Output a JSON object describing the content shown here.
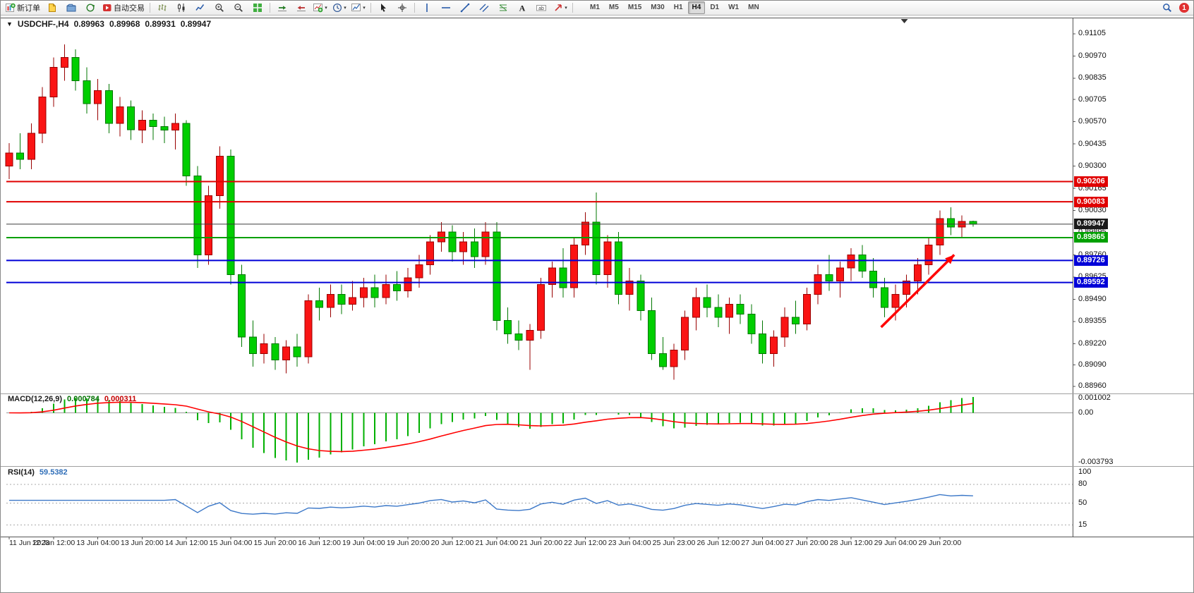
{
  "main_title": {
    "symbol_period": "USDCHF-,H4",
    "open": "0.89963",
    "high": "0.89968",
    "low": "0.89931",
    "close": "0.89947"
  },
  "toolbar": {
    "left_items": [
      {
        "type": "button",
        "name": "new-order-button",
        "icon": "new-order-icon",
        "label": "新订单"
      },
      {
        "type": "button",
        "name": "new-chart-button",
        "icon": "new-chart-icon"
      },
      {
        "type": "button",
        "name": "profiles-button",
        "icon": "profiles-icon"
      },
      {
        "type": "button",
        "name": "refresh-button",
        "icon": "refresh-icon"
      },
      {
        "type": "button",
        "name": "autotrading-button",
        "icon": "autotrade-icon",
        "label": "自动交易"
      },
      {
        "type": "sep"
      },
      {
        "type": "button",
        "name": "bar-chart-button",
        "icon": "bar-chart-icon"
      },
      {
        "type": "button",
        "name": "candle-chart-button",
        "icon": "candlestick-chart-icon"
      },
      {
        "type": "button",
        "name": "line-chart-button",
        "icon": "line-chart-icon"
      },
      {
        "type": "button",
        "name": "zoom-in-button",
        "icon": "zoom-in-icon"
      },
      {
        "type": "button",
        "name": "zoom-out-button",
        "icon": "zoom-out-icon"
      },
      {
        "type": "button",
        "name": "tile-windows-button",
        "icon": "tile-windows-icon"
      },
      {
        "type": "sep"
      },
      {
        "type": "button",
        "name": "auto-scroll-button",
        "icon": "auto-scroll-icon"
      },
      {
        "type": "button",
        "name": "chart-shift-button",
        "icon": "chart-shift-icon"
      },
      {
        "type": "button",
        "name": "indicators-button",
        "icon": "indicators-icon",
        "dropdown": true
      },
      {
        "type": "button",
        "name": "periods-button",
        "icon": "periods-icon",
        "dropdown": true
      },
      {
        "type": "button",
        "name": "templates-button",
        "icon": "templates-icon",
        "dropdown": true
      },
      {
        "type": "sep"
      },
      {
        "type": "button",
        "name": "cursor-button",
        "icon": "cursor-icon"
      },
      {
        "type": "button",
        "name": "crosshair-button",
        "icon": "crosshair-icon"
      },
      {
        "type": "sep"
      },
      {
        "type": "button",
        "name": "vline-button",
        "icon": "vline-icon"
      },
      {
        "type": "button",
        "name": "hline-button",
        "icon": "hline-icon"
      },
      {
        "type": "button",
        "name": "trendline-button",
        "icon": "trendline-icon"
      },
      {
        "type": "button",
        "name": "channel-button",
        "icon": "channel-icon"
      },
      {
        "type": "button",
        "name": "fibonacci-button",
        "icon": "fibonacci-icon"
      },
      {
        "type": "button",
        "name": "text-button",
        "icon": "text-icon"
      },
      {
        "type": "button",
        "name": "label-button",
        "icon": "label-icon"
      },
      {
        "type": "button",
        "name": "arrows-button",
        "icon": "arrows-icon",
        "dropdown": true
      },
      {
        "type": "sep"
      }
    ],
    "timeframes": {
      "items": [
        "M1",
        "M5",
        "M15",
        "M30",
        "H1",
        "H4",
        "D1",
        "W1",
        "MN"
      ],
      "active": "H4"
    },
    "right_items": [
      {
        "type": "button",
        "name": "search-button",
        "icon": "search-icon"
      },
      {
        "type": "badge",
        "name": "notification-badge",
        "label": "1"
      }
    ]
  },
  "chart_data": {
    "type": "candlestick",
    "title": "USDCHF-,H4",
    "symbol": "USDCHF-",
    "period": "H4",
    "candles": [
      [
        0.903,
        0.9044,
        0.9022,
        0.9038
      ],
      [
        0.9038,
        0.905,
        0.9028,
        0.9034
      ],
      [
        0.9034,
        0.9056,
        0.9028,
        0.905
      ],
      [
        0.905,
        0.9078,
        0.9044,
        0.9072
      ],
      [
        0.9072,
        0.9096,
        0.9066,
        0.909
      ],
      [
        0.909,
        0.9104,
        0.9082,
        0.9096
      ],
      [
        0.9096,
        0.9101,
        0.9076,
        0.9082
      ],
      [
        0.9082,
        0.909,
        0.9062,
        0.9068
      ],
      [
        0.9068,
        0.9083,
        0.9058,
        0.9076
      ],
      [
        0.9076,
        0.908,
        0.905,
        0.9056
      ],
      [
        0.9056,
        0.9072,
        0.9048,
        0.9066
      ],
      [
        0.9066,
        0.907,
        0.9046,
        0.9052
      ],
      [
        0.9052,
        0.9064,
        0.9044,
        0.9058
      ],
      [
        0.9058,
        0.9062,
        0.9046,
        0.9054
      ],
      [
        0.9054,
        0.906,
        0.9044,
        0.9052
      ],
      [
        0.9052,
        0.9062,
        0.904,
        0.9056
      ],
      [
        0.9056,
        0.9058,
        0.9018,
        0.9024
      ],
      [
        0.9024,
        0.903,
        0.8968,
        0.8976
      ],
      [
        0.8976,
        0.9018,
        0.897,
        0.9012
      ],
      [
        0.9012,
        0.9042,
        0.9004,
        0.9036
      ],
      [
        0.9036,
        0.904,
        0.8958,
        0.8964
      ],
      [
        0.8964,
        0.897,
        0.892,
        0.8926
      ],
      [
        0.8926,
        0.8936,
        0.8908,
        0.8916
      ],
      [
        0.8916,
        0.8928,
        0.891,
        0.8922
      ],
      [
        0.8922,
        0.8926,
        0.8906,
        0.8912
      ],
      [
        0.8912,
        0.8924,
        0.8904,
        0.892
      ],
      [
        0.892,
        0.8928,
        0.8908,
        0.8914
      ],
      [
        0.8914,
        0.8952,
        0.891,
        0.8948
      ],
      [
        0.8948,
        0.8956,
        0.8936,
        0.8944
      ],
      [
        0.8944,
        0.8958,
        0.8938,
        0.8952
      ],
      [
        0.8952,
        0.8958,
        0.894,
        0.8946
      ],
      [
        0.8946,
        0.896,
        0.8942,
        0.895
      ],
      [
        0.895,
        0.8962,
        0.8944,
        0.8956
      ],
      [
        0.8956,
        0.8964,
        0.8944,
        0.895
      ],
      [
        0.895,
        0.8964,
        0.8946,
        0.8958
      ],
      [
        0.8958,
        0.8966,
        0.8948,
        0.8954
      ],
      [
        0.8954,
        0.8968,
        0.895,
        0.8962
      ],
      [
        0.8962,
        0.8976,
        0.8956,
        0.897
      ],
      [
        0.897,
        0.8988,
        0.8964,
        0.8984
      ],
      [
        0.8984,
        0.8996,
        0.8978,
        0.899
      ],
      [
        0.899,
        0.8994,
        0.8972,
        0.8978
      ],
      [
        0.8978,
        0.899,
        0.897,
        0.8984
      ],
      [
        0.8984,
        0.8992,
        0.8968,
        0.8975
      ],
      [
        0.8975,
        0.8996,
        0.897,
        0.899
      ],
      [
        0.899,
        0.8996,
        0.893,
        0.8936
      ],
      [
        0.8936,
        0.8944,
        0.8922,
        0.8928
      ],
      [
        0.8928,
        0.8936,
        0.8918,
        0.8924
      ],
      [
        0.8924,
        0.8934,
        0.8906,
        0.893
      ],
      [
        0.893,
        0.8962,
        0.8925,
        0.8958
      ],
      [
        0.8958,
        0.8972,
        0.895,
        0.8968
      ],
      [
        0.8968,
        0.898,
        0.895,
        0.8956
      ],
      [
        0.8956,
        0.8986,
        0.895,
        0.8982
      ],
      [
        0.8982,
        0.9002,
        0.8976,
        0.8996
      ],
      [
        0.8996,
        0.9014,
        0.8958,
        0.8964
      ],
      [
        0.8964,
        0.8988,
        0.8956,
        0.8984
      ],
      [
        0.8984,
        0.899,
        0.8946,
        0.8952
      ],
      [
        0.8952,
        0.8968,
        0.8942,
        0.896
      ],
      [
        0.896,
        0.8964,
        0.8936,
        0.8942
      ],
      [
        0.8942,
        0.895,
        0.8912,
        0.8916
      ],
      [
        0.8916,
        0.8926,
        0.8906,
        0.8908
      ],
      [
        0.8908,
        0.8922,
        0.89,
        0.8918
      ],
      [
        0.8918,
        0.8942,
        0.8912,
        0.8938
      ],
      [
        0.8938,
        0.8956,
        0.893,
        0.895
      ],
      [
        0.895,
        0.8958,
        0.8938,
        0.8944
      ],
      [
        0.8944,
        0.8952,
        0.8932,
        0.8938
      ],
      [
        0.8938,
        0.895,
        0.8928,
        0.8946
      ],
      [
        0.8946,
        0.8952,
        0.8934,
        0.894
      ],
      [
        0.894,
        0.8946,
        0.8922,
        0.8928
      ],
      [
        0.8928,
        0.8936,
        0.891,
        0.8916
      ],
      [
        0.8916,
        0.893,
        0.8908,
        0.8926
      ],
      [
        0.8926,
        0.8944,
        0.892,
        0.8938
      ],
      [
        0.8938,
        0.8948,
        0.8928,
        0.8934
      ],
      [
        0.8934,
        0.8956,
        0.893,
        0.8952
      ],
      [
        0.8952,
        0.897,
        0.8946,
        0.8964
      ],
      [
        0.8964,
        0.8976,
        0.8954,
        0.896
      ],
      [
        0.896,
        0.8972,
        0.895,
        0.8968
      ],
      [
        0.8968,
        0.898,
        0.896,
        0.8976
      ],
      [
        0.8976,
        0.8982,
        0.8962,
        0.8966
      ],
      [
        0.8966,
        0.8974,
        0.895,
        0.8956
      ],
      [
        0.8956,
        0.8962,
        0.8938,
        0.8944
      ],
      [
        0.8944,
        0.8958,
        0.8936,
        0.8952
      ],
      [
        0.8952,
        0.8964,
        0.8944,
        0.896
      ],
      [
        0.896,
        0.8974,
        0.8952,
        0.897
      ],
      [
        0.897,
        0.8986,
        0.8964,
        0.8982
      ],
      [
        0.8982,
        0.9003,
        0.8976,
        0.8998
      ],
      [
        0.8998,
        0.9005,
        0.8988,
        0.8993
      ],
      [
        0.8993,
        0.9,
        0.8987,
        0.89963
      ],
      [
        0.89963,
        0.89968,
        0.89931,
        0.89947
      ]
    ],
    "x_labels": [
      "11 Jun 2023",
      "12 Jun 12:00",
      "13 Jun 04:00",
      "13 Jun 20:00",
      "14 Jun 12:00",
      "15 Jun 04:00",
      "15 Jun 20:00",
      "16 Jun 12:00",
      "19 Jun 04:00",
      "19 Jun 20:00",
      "20 Jun 12:00",
      "21 Jun 04:00",
      "21 Jun 20:00",
      "22 Jun 12:00",
      "23 Jun 04:00",
      "25 Jun 23:00",
      "26 Jun 12:00",
      "27 Jun 04:00",
      "27 Jun 20:00",
      "28 Jun 12:00",
      "29 Jun 04:00",
      "29 Jun 20:00"
    ],
    "price_axis_ticks": [
      "0.91105",
      "0.90970",
      "0.90835",
      "0.90705",
      "0.90570",
      "0.90435",
      "0.90300",
      "0.90165",
      "0.90030",
      "0.89895",
      "0.89760",
      "0.89625",
      "0.89490",
      "0.89355",
      "0.89220",
      "0.89090",
      "0.88960"
    ],
    "hlines": [
      {
        "price": 0.90206,
        "color": "#e00000",
        "width": 2,
        "name": "resistance-line-1"
      },
      {
        "price": 0.90083,
        "color": "#e00000",
        "width": 2,
        "name": "resistance-line-2"
      },
      {
        "price": 0.89865,
        "color": "#00a000",
        "width": 2,
        "name": "green-level-line"
      },
      {
        "price": 0.89726,
        "color": "#0000d8",
        "width": 2,
        "name": "support-line-1"
      },
      {
        "price": 0.89592,
        "color": "#0000d8",
        "width": 2,
        "name": "support-line-2"
      }
    ],
    "current_price": {
      "price": 0.89947,
      "label": "0.89947"
    },
    "price_tags": [
      {
        "label": "0.90206",
        "price": 0.90206,
        "bg": "#e00000"
      },
      {
        "label": "0.90083",
        "price": 0.90083,
        "bg": "#e00000"
      },
      {
        "label": "0.89947",
        "price": 0.89947,
        "bg": "#1a1a1a"
      },
      {
        "label": "0.89865",
        "price": 0.89865,
        "bg": "#00a000"
      },
      {
        "label": "0.89726",
        "price": 0.89726,
        "bg": "#0000d8"
      },
      {
        "label": "0.89592",
        "price": 0.89592,
        "bg": "#0000d8"
      }
    ],
    "macd": {
      "title": "MACD(12,26,9)",
      "value_main": "0.000784",
      "value_signal": "0.000311",
      "params": [
        12,
        26,
        9
      ],
      "axis_labels": [
        "0.001002",
        "0.00",
        "-0.003793"
      ]
    },
    "rsi": {
      "title": "RSI(14)",
      "value": "59.5382",
      "period": 14,
      "levels": [
        80,
        50,
        15
      ],
      "axis_labels": [
        "100",
        "80",
        "50",
        "15"
      ]
    },
    "arrow": {
      "from": {
        "index": 78.7,
        "price": 0.8932
      },
      "to": {
        "index": 85.3,
        "price": 0.8976
      },
      "color": "#ff0000"
    },
    "shift_marker_index": 80.8,
    "colors": {
      "up": "#fa1414",
      "up_border": "#990000",
      "down": "#00ce00",
      "down_border": "#007700",
      "macd_hist": "#00b000",
      "macd_signal": "#ff0000",
      "rsi_line": "#3c78c8"
    }
  }
}
